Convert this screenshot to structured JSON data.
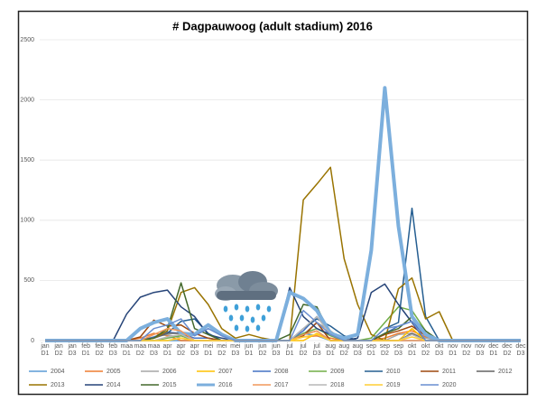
{
  "chart_data": {
    "type": "line",
    "title": "# Dagpauwoog (adult stadium) 2016",
    "categories": [
      [
        "jan",
        "D1"
      ],
      [
        "jan",
        "D2"
      ],
      [
        "jan",
        "D3"
      ],
      [
        "feb",
        "D1"
      ],
      [
        "feb",
        "D2"
      ],
      [
        "feb",
        "D3"
      ],
      [
        "maa",
        "D1"
      ],
      [
        "maa",
        "D2"
      ],
      [
        "maa",
        "D3"
      ],
      [
        "apr",
        "D1"
      ],
      [
        "apr",
        "D2"
      ],
      [
        "apr",
        "D3"
      ],
      [
        "mei",
        "D1"
      ],
      [
        "mei",
        "D2"
      ],
      [
        "mei",
        "D3"
      ],
      [
        "jun",
        "D1"
      ],
      [
        "jun",
        "D2"
      ],
      [
        "jun",
        "D3"
      ],
      [
        "jul",
        "D1"
      ],
      [
        "jul",
        "D2"
      ],
      [
        "jul",
        "D3"
      ],
      [
        "aug",
        "D1"
      ],
      [
        "aug",
        "D2"
      ],
      [
        "aug",
        "D3"
      ],
      [
        "sep",
        "D1"
      ],
      [
        "sep",
        "D2"
      ],
      [
        "sep",
        "D3"
      ],
      [
        "okt",
        "D1"
      ],
      [
        "okt",
        "D2"
      ],
      [
        "okt",
        "D3"
      ],
      [
        "nov",
        "D1"
      ],
      [
        "nov",
        "D2"
      ],
      [
        "nov",
        "D3"
      ],
      [
        "dec",
        "D1"
      ],
      [
        "dec",
        "D2"
      ],
      [
        "dec",
        "D3"
      ]
    ],
    "ylim": [
      0,
      2500
    ],
    "yticks": [
      0,
      500,
      1000,
      1500,
      2000,
      2500
    ],
    "grid": true,
    "legend": "bottom",
    "series": [
      {
        "name": "2004",
        "color": "#5b9bd5",
        "width": 1.5,
        "values": [
          0,
          0,
          0,
          0,
          0,
          0,
          0,
          0,
          0,
          0,
          0,
          0,
          0,
          0,
          0,
          0,
          0,
          0,
          0,
          60,
          40,
          0,
          0,
          0,
          0,
          0,
          0,
          0,
          0,
          0,
          0,
          0,
          0,
          0,
          0,
          0
        ]
      },
      {
        "name": "2005",
        "color": "#ed7d31",
        "width": 1.5,
        "values": [
          0,
          0,
          0,
          0,
          0,
          0,
          0,
          20,
          60,
          40,
          0,
          0,
          0,
          0,
          0,
          0,
          0,
          0,
          0,
          30,
          40,
          20,
          0,
          0,
          0,
          20,
          60,
          80,
          30,
          0,
          0,
          0,
          0,
          0,
          0,
          0
        ]
      },
      {
        "name": "2006",
        "color": "#a5a5a5",
        "width": 1.5,
        "values": [
          0,
          0,
          0,
          0,
          0,
          0,
          0,
          0,
          30,
          50,
          20,
          0,
          0,
          0,
          0,
          0,
          0,
          0,
          0,
          50,
          150,
          80,
          0,
          0,
          0,
          0,
          50,
          60,
          20,
          0,
          0,
          0,
          0,
          0,
          0,
          0
        ]
      },
      {
        "name": "2007",
        "color": "#ffc000",
        "width": 1.5,
        "values": [
          0,
          0,
          0,
          0,
          0,
          0,
          0,
          0,
          0,
          0,
          20,
          0,
          0,
          0,
          0,
          0,
          0,
          0,
          0,
          0,
          60,
          0,
          0,
          0,
          0,
          0,
          0,
          100,
          0,
          0,
          0,
          0,
          0,
          0,
          0,
          0
        ]
      },
      {
        "name": "2008",
        "color": "#4472c4",
        "width": 1.5,
        "values": [
          0,
          0,
          0,
          0,
          0,
          0,
          0,
          0,
          30,
          70,
          60,
          20,
          20,
          0,
          0,
          0,
          0,
          0,
          0,
          80,
          200,
          60,
          0,
          0,
          0,
          60,
          120,
          160,
          40,
          0,
          0,
          0,
          0,
          0,
          0,
          0
        ]
      },
      {
        "name": "2009",
        "color": "#70ad47",
        "width": 1.5,
        "values": [
          0,
          0,
          0,
          0,
          0,
          0,
          0,
          0,
          0,
          20,
          40,
          0,
          0,
          0,
          0,
          0,
          0,
          0,
          0,
          60,
          100,
          40,
          0,
          0,
          20,
          150,
          280,
          250,
          80,
          0,
          0,
          0,
          0,
          0,
          0,
          0
        ]
      },
      {
        "name": "2010",
        "color": "#255e91",
        "width": 1.5,
        "values": [
          0,
          0,
          0,
          0,
          0,
          0,
          0,
          0,
          20,
          60,
          160,
          180,
          60,
          0,
          0,
          0,
          0,
          0,
          0,
          100,
          180,
          120,
          40,
          0,
          0,
          100,
          150,
          1100,
          200,
          0,
          0,
          0,
          0,
          0,
          0,
          0
        ]
      },
      {
        "name": "2011",
        "color": "#9e480e",
        "width": 1.5,
        "values": [
          0,
          0,
          0,
          0,
          0,
          0,
          0,
          30,
          170,
          120,
          130,
          60,
          20,
          0,
          0,
          0,
          0,
          0,
          0,
          40,
          150,
          0,
          0,
          0,
          0,
          50,
          80,
          120,
          40,
          0,
          0,
          0,
          0,
          0,
          0,
          0
        ]
      },
      {
        "name": "2012",
        "color": "#636363",
        "width": 1.5,
        "values": [
          0,
          0,
          0,
          0,
          0,
          0,
          0,
          0,
          20,
          60,
          60,
          0,
          0,
          0,
          0,
          0,
          0,
          0,
          0,
          50,
          80,
          0,
          0,
          0,
          0,
          0,
          0,
          60,
          0,
          0,
          0,
          0,
          0,
          0,
          0,
          0
        ]
      },
      {
        "name": "2013",
        "color": "#997300",
        "width": 1.5,
        "values": [
          0,
          0,
          0,
          0,
          0,
          0,
          0,
          0,
          20,
          80,
          400,
          440,
          300,
          100,
          20,
          50,
          20,
          0,
          0,
          1170,
          1300,
          1440,
          680,
          300,
          50,
          0,
          430,
          520,
          180,
          240,
          0,
          0,
          0,
          0,
          0,
          0
        ]
      },
      {
        "name": "2014",
        "color": "#264478",
        "width": 1.5,
        "values": [
          0,
          0,
          0,
          0,
          0,
          0,
          220,
          360,
          400,
          420,
          280,
          200,
          50,
          20,
          0,
          0,
          0,
          0,
          440,
          200,
          100,
          50,
          0,
          20,
          400,
          470,
          300,
          150,
          0,
          0,
          0,
          0,
          0,
          0,
          0,
          0
        ]
      },
      {
        "name": "2015",
        "color": "#43682b",
        "width": 1.5,
        "values": [
          0,
          0,
          0,
          0,
          0,
          0,
          0,
          0,
          20,
          100,
          480,
          100,
          50,
          0,
          0,
          0,
          0,
          0,
          50,
          300,
          280,
          50,
          0,
          0,
          0,
          60,
          100,
          200,
          80,
          0,
          0,
          0,
          0,
          0,
          0,
          0
        ]
      },
      {
        "name": "2016",
        "color": "#7cafdd",
        "width": 4,
        "values": [
          0,
          0,
          0,
          0,
          0,
          0,
          0,
          100,
          150,
          180,
          60,
          50,
          130,
          50,
          0,
          0,
          0,
          0,
          400,
          350,
          250,
          60,
          20,
          50,
          750,
          2100,
          950,
          200,
          50,
          0,
          0,
          0,
          0,
          0,
          0,
          0
        ]
      },
      {
        "name": "2017",
        "color": "#f1975a",
        "width": 1.5,
        "values": [
          0,
          0,
          0,
          0,
          0,
          0,
          0,
          0,
          50,
          100,
          80,
          0,
          0,
          0,
          0,
          0,
          0,
          0,
          0,
          50,
          80,
          0,
          0,
          0,
          0,
          0,
          0,
          0,
          0,
          0,
          0,
          0,
          0,
          0,
          0,
          0
        ]
      },
      {
        "name": "2018",
        "color": "#b7b7b7",
        "width": 1.5,
        "values": [
          0,
          0,
          0,
          0,
          0,
          0,
          0,
          0,
          0,
          30,
          50,
          0,
          0,
          0,
          0,
          0,
          0,
          0,
          0,
          100,
          200,
          50,
          0,
          0,
          0,
          0,
          0,
          50,
          0,
          0,
          0,
          0,
          0,
          0,
          0,
          0
        ]
      },
      {
        "name": "2019",
        "color": "#ffcd33",
        "width": 1.5,
        "values": [
          0,
          0,
          0,
          0,
          0,
          0,
          0,
          0,
          0,
          0,
          20,
          0,
          0,
          0,
          0,
          0,
          0,
          0,
          0,
          30,
          50,
          0,
          0,
          0,
          0,
          0,
          0,
          30,
          0,
          0,
          0,
          0,
          0,
          0,
          0,
          0
        ]
      },
      {
        "name": "2020",
        "color": "#698ed0",
        "width": 1.5,
        "values": [
          0,
          0,
          0,
          0,
          0,
          0,
          0,
          0,
          100,
          130,
          180,
          40,
          100,
          40,
          0,
          0,
          0,
          0,
          0,
          250,
          150,
          50,
          0,
          0,
          0,
          100,
          120,
          160,
          0,
          0,
          0,
          0,
          0,
          0,
          0,
          0
        ]
      }
    ]
  }
}
